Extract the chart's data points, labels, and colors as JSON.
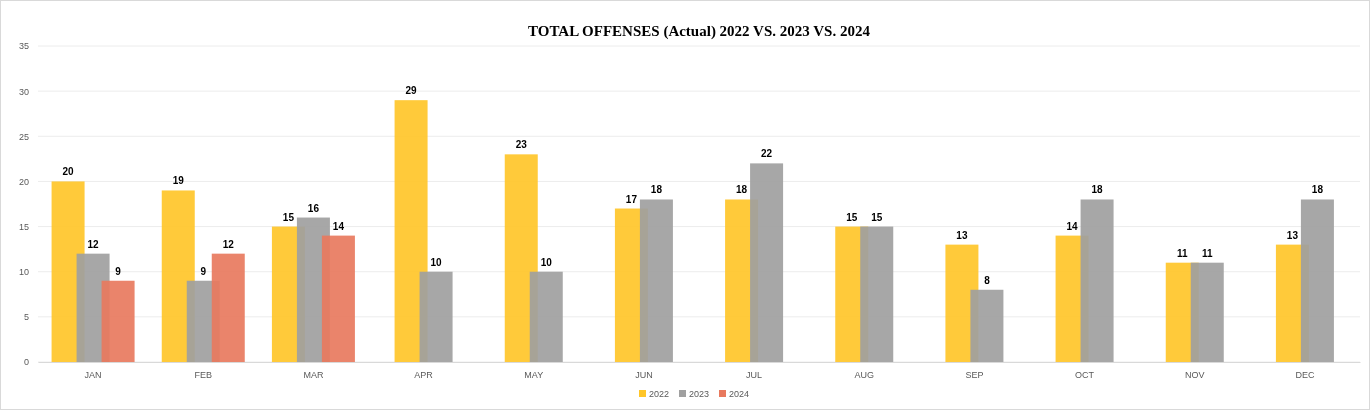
{
  "chart_data": {
    "type": "bar",
    "title": "TOTAL OFFENSES (Actual) 2022 VS. 2023 VS. 2024",
    "categories": [
      "JAN",
      "FEB",
      "MAR",
      "APR",
      "MAY",
      "JUN",
      "JUL",
      "AUG",
      "SEP",
      "OCT",
      "NOV",
      "DEC"
    ],
    "series": [
      {
        "name": "2022",
        "color": "#ffc629",
        "values": [
          20,
          19,
          15,
          29,
          23,
          17,
          18,
          15,
          13,
          14,
          11,
          13
        ]
      },
      {
        "name": "2023",
        "color": "#a0a0a0",
        "values": [
          12,
          9,
          16,
          10,
          10,
          18,
          22,
          15,
          8,
          18,
          11,
          18
        ]
      },
      {
        "name": "2024",
        "color": "#e8795e",
        "values": [
          9,
          12,
          14,
          null,
          null,
          null,
          null,
          null,
          null,
          null,
          null,
          null
        ]
      }
    ],
    "ylim": [
      0,
      35
    ],
    "yticks": [
      0,
      5,
      10,
      15,
      20,
      25,
      30,
      35
    ],
    "grid": "y",
    "legend": "bottom",
    "data_labels": true
  }
}
